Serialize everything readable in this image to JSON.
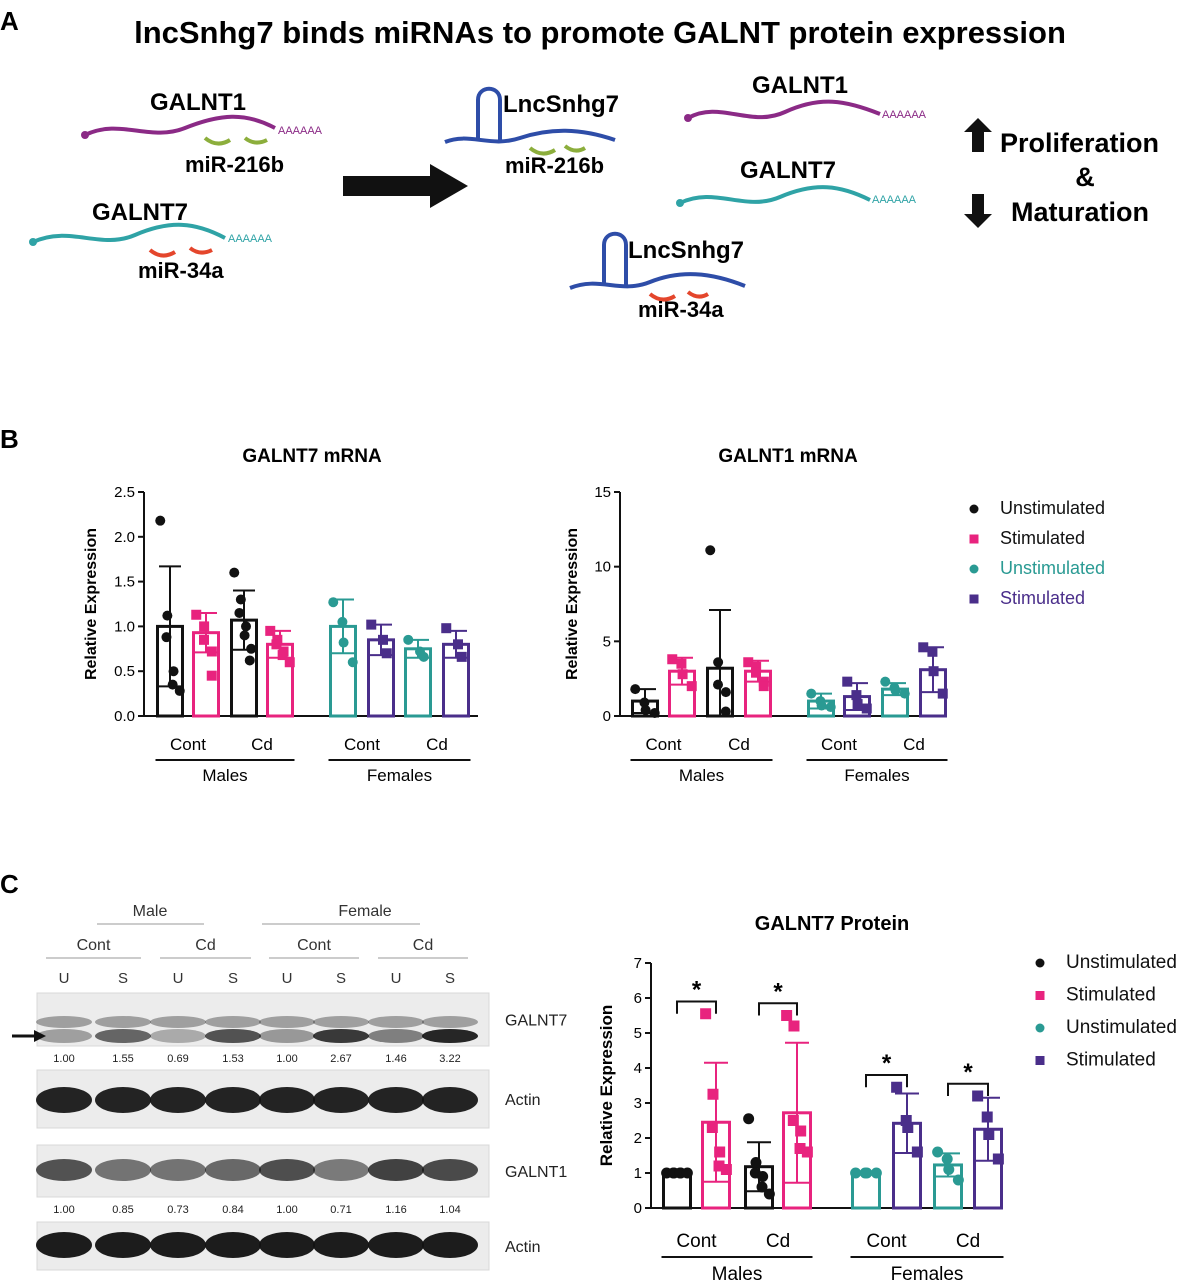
{
  "panels": {
    "a": "A",
    "b": "B",
    "c": "C"
  },
  "schematic": {
    "title": "lncSnhg7 binds miRNAs to promote GALNT protein expression",
    "left_galnt1": "GALNT1",
    "left_mir216": "miR-216b",
    "left_galnt7": "GALNT7",
    "left_mir34": "miR-34a",
    "mid_lnc": "LncSnhg7",
    "mid_mir216": "miR-216b",
    "right_galnt1": "GALNT1",
    "right_galnt7": "GALNT7",
    "bottom_lnc": "LncSnhg7",
    "bottom_mir34": "miR-34a",
    "polyA": "AAAAAA",
    "outcome_1": "Proliferation",
    "outcome_amp": "&",
    "outcome_2": "Maturation",
    "colors": {
      "galnt1": "#8b2a86",
      "galnt7": "#2fa3a6",
      "lnc": "#2e4da8",
      "mir216": "#8cae3c",
      "mir34": "#e4462c"
    }
  },
  "legend": [
    {
      "label": "Unstimulated",
      "color": "#111111",
      "marker": "circle",
      "text_color": "#111111"
    },
    {
      "label": "Stimulated",
      "color": "#e8237e",
      "marker": "square",
      "text_color": "#111111"
    },
    {
      "label": "Unstimulated",
      "color": "#2a9a93",
      "marker": "circle",
      "text_color": "#2a9a93"
    },
    {
      "label": "Stimulated",
      "color": "#4a2e8a",
      "marker": "square",
      "text_color": "#4a2e8a"
    }
  ],
  "legend_c": [
    {
      "label": "Unstimulated",
      "color": "#111111",
      "marker": "circle"
    },
    {
      "label": "Stimulated",
      "color": "#e8237e",
      "marker": "square"
    },
    {
      "label": "Unstimulated",
      "color": "#2a9a93",
      "marker": "circle"
    },
    {
      "label": "Stimulated",
      "color": "#4a2e8a",
      "marker": "square"
    }
  ],
  "chart_data": [
    {
      "type": "bar",
      "title": "GALNT7 mRNA",
      "ylabel": "Relative Expression",
      "ylim": [
        0,
        2.5
      ],
      "yticks": [
        "0.0",
        "0.5",
        "1.0",
        "1.5",
        "2.0",
        "2.5"
      ],
      "group_labels": [
        "Cont",
        "Cd",
        "Cont",
        "Cd"
      ],
      "sex_labels": [
        "Males",
        "Females"
      ],
      "bars": [
        {
          "color": "#111111",
          "marker": "circle",
          "mean": 1.0,
          "sd": 0.67,
          "points": [
            2.18,
            1.12,
            0.88,
            0.5,
            0.35,
            0.28
          ]
        },
        {
          "color": "#e8237e",
          "marker": "square",
          "mean": 0.93,
          "sd": 0.22,
          "points": [
            1.13,
            1.0,
            0.85,
            0.72,
            0.45
          ]
        },
        {
          "color": "#111111",
          "marker": "circle",
          "mean": 1.07,
          "sd": 0.33,
          "points": [
            1.6,
            1.3,
            1.15,
            1.0,
            0.9,
            0.75,
            0.62
          ]
        },
        {
          "color": "#e8237e",
          "marker": "square",
          "mean": 0.8,
          "sd": 0.15,
          "points": [
            0.95,
            0.85,
            0.8,
            0.72,
            0.68,
            0.6
          ]
        },
        {
          "color": "#2a9a93",
          "marker": "circle",
          "mean": 1.0,
          "sd": 0.3,
          "points": [
            1.27,
            1.05,
            0.82,
            0.6
          ]
        },
        {
          "color": "#4a2e8a",
          "marker": "square",
          "mean": 0.85,
          "sd": 0.17,
          "points": [
            1.02,
            0.85,
            0.7
          ]
        },
        {
          "color": "#2a9a93",
          "marker": "circle",
          "mean": 0.75,
          "sd": 0.1,
          "points": [
            0.85,
            0.72,
            0.66
          ]
        },
        {
          "color": "#4a2e8a",
          "marker": "square",
          "mean": 0.8,
          "sd": 0.15,
          "points": [
            0.98,
            0.8,
            0.66
          ]
        }
      ]
    },
    {
      "type": "bar",
      "title": "GALNT1 mRNA",
      "ylabel": "Relative Expression",
      "ylim": [
        0,
        15
      ],
      "yticks": [
        "0",
        "5",
        "10",
        "15"
      ],
      "group_labels": [
        "Cont",
        "Cd",
        "Cont",
        "Cd"
      ],
      "sex_labels": [
        "Males",
        "Females"
      ],
      "bars": [
        {
          "color": "#111111",
          "marker": "circle",
          "mean": 1.0,
          "sd": 0.8,
          "points": [
            1.8,
            0.9,
            0.4,
            0.2
          ]
        },
        {
          "color": "#e8237e",
          "marker": "square",
          "mean": 3.0,
          "sd": 0.9,
          "points": [
            3.8,
            3.5,
            2.8,
            2.0
          ]
        },
        {
          "color": "#111111",
          "marker": "circle",
          "mean": 3.2,
          "sd": 3.9,
          "points": [
            11.1,
            3.6,
            2.1,
            1.6,
            0.3
          ]
        },
        {
          "color": "#e8237e",
          "marker": "square",
          "mean": 3.0,
          "sd": 0.7,
          "points": [
            3.6,
            3.3,
            2.9,
            2.3,
            2.0
          ]
        },
        {
          "color": "#2a9a93",
          "marker": "circle",
          "mean": 1.0,
          "sd": 0.5,
          "points": [
            1.5,
            1.0,
            0.7,
            0.6
          ]
        },
        {
          "color": "#4a2e8a",
          "marker": "square",
          "mean": 1.3,
          "sd": 0.9,
          "points": [
            2.3,
            1.4,
            0.8,
            0.5
          ]
        },
        {
          "color": "#2a9a93",
          "marker": "circle",
          "mean": 1.8,
          "sd": 0.4,
          "points": [
            2.3,
            1.9,
            1.7,
            1.5
          ]
        },
        {
          "color": "#4a2e8a",
          "marker": "square",
          "mean": 3.1,
          "sd": 1.5,
          "points": [
            4.6,
            4.3,
            3.0,
            1.5
          ]
        }
      ]
    },
    {
      "type": "bar",
      "title": "GALNT7 Protein",
      "ylabel": "Relative Expression",
      "ylim": [
        0,
        7
      ],
      "yticks": [
        "0",
        "1",
        "2",
        "3",
        "4",
        "5",
        "6",
        "7"
      ],
      "group_labels": [
        "Cont",
        "Cd",
        "Cont",
        "Cd"
      ],
      "sex_labels": [
        "Males",
        "Females"
      ],
      "significance": "*",
      "bars": [
        {
          "color": "#111111",
          "marker": "circle",
          "mean": 1.0,
          "sd": 0.0,
          "points": [
            1.0,
            1.0,
            1.0,
            1.0,
            1.0,
            1.0
          ]
        },
        {
          "color": "#e8237e",
          "marker": "square",
          "mean": 2.45,
          "sd": 1.7,
          "points": [
            5.55,
            3.25,
            2.3,
            1.6,
            1.2,
            1.1
          ]
        },
        {
          "color": "#111111",
          "marker": "circle",
          "mean": 1.18,
          "sd": 0.7,
          "points": [
            2.55,
            1.3,
            1.0,
            0.9,
            0.6,
            0.4
          ]
        },
        {
          "color": "#e8237e",
          "marker": "square",
          "mean": 2.72,
          "sd": 2.0,
          "points": [
            5.5,
            5.2,
            2.5,
            2.2,
            1.7,
            1.6
          ]
        },
        {
          "color": "#2a9a93",
          "marker": "circle",
          "mean": 1.0,
          "sd": 0.0,
          "points": [
            1.0,
            1.0,
            1.0,
            1.0
          ]
        },
        {
          "color": "#4a2e8a",
          "marker": "square",
          "mean": 2.42,
          "sd": 0.85,
          "points": [
            3.45,
            2.5,
            2.3,
            1.6
          ]
        },
        {
          "color": "#2a9a93",
          "marker": "circle",
          "mean": 1.23,
          "sd": 0.33,
          "points": [
            1.6,
            1.4,
            1.1,
            0.8
          ]
        },
        {
          "color": "#4a2e8a",
          "marker": "square",
          "mean": 2.25,
          "sd": 0.9,
          "points": [
            3.2,
            2.6,
            2.1,
            1.4
          ]
        }
      ]
    }
  ],
  "blot": {
    "sex_labels": [
      "Male",
      "Female"
    ],
    "treatment_labels": [
      "Cont",
      "Cd",
      "Cont",
      "Cd"
    ],
    "lane_labels": [
      "U",
      "S",
      "U",
      "S",
      "U",
      "S",
      "U",
      "S"
    ],
    "rows": [
      {
        "label": "GALNT7",
        "values": [
          "1.00",
          "1.55",
          "0.69",
          "1.53",
          "1.00",
          "2.67",
          "1.46",
          "3.22"
        ]
      },
      {
        "label": "Actin",
        "values": []
      },
      {
        "label": "GALNT1",
        "values": [
          "1.00",
          "0.85",
          "0.73",
          "0.84",
          "1.00",
          "0.71",
          "1.16",
          "1.04"
        ]
      },
      {
        "label": "Actin",
        "values": []
      }
    ]
  }
}
